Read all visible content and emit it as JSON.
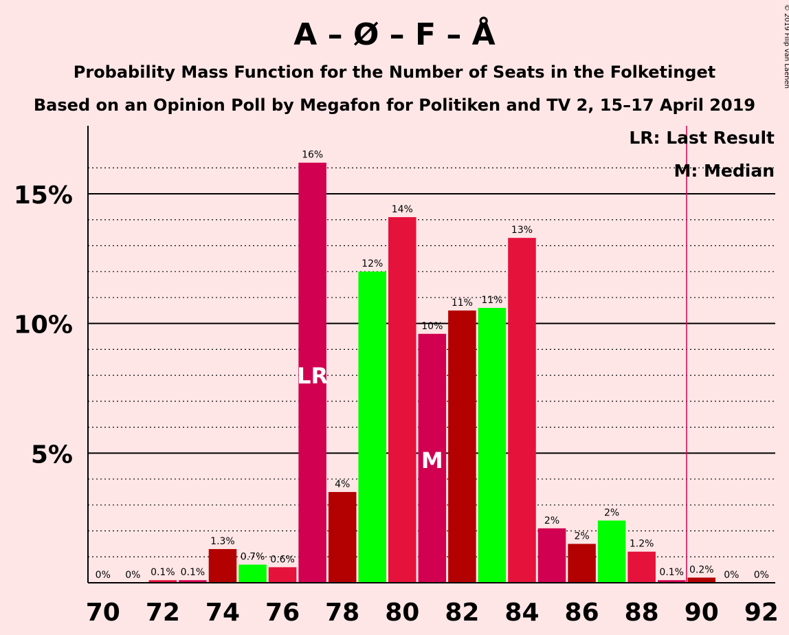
{
  "title": "A – Ø – F – Å",
  "subtitle1": "Probability Mass Function for the Number of Seats in the Folketinget",
  "subtitle2": "Based on an Opinion Poll by Megafon for Politiken and TV 2, 15–17 April 2019",
  "copyright": "© 2019 Filip van Laenen",
  "legend": {
    "lr": "LR: Last Result",
    "m": "M: Median"
  },
  "colors": {
    "background": "#FFE6E6",
    "palette": [
      "#D10050",
      "#B30000",
      "#00FF00",
      "#E5123C"
    ],
    "last_result_line": "#D10050"
  },
  "chart_data": {
    "type": "bar",
    "x": [
      70,
      71,
      72,
      73,
      74,
      75,
      76,
      77,
      78,
      79,
      80,
      81,
      82,
      83,
      84,
      85,
      86,
      87,
      88,
      89,
      90,
      91,
      92
    ],
    "values": [
      0,
      0,
      0.1,
      0.1,
      1.3,
      0.7,
      0.6,
      16.2,
      3.5,
      12.0,
      14.1,
      9.6,
      10.5,
      10.6,
      13.3,
      2.1,
      1.5,
      2.4,
      1.2,
      0.1,
      0.2,
      0,
      0
    ],
    "labels": [
      "0%",
      "0%",
      "0.1%",
      "0.1%",
      "1.3%",
      "0.7%",
      "0.6%",
      "16%",
      "4%",
      "12%",
      "14%",
      "10%",
      "11%",
      "11%",
      "13%",
      "2%",
      "2%",
      "2%",
      "1.2%",
      "0.1%",
      "0.2%",
      "0%",
      "0%"
    ],
    "x_ticks": [
      "70",
      "72",
      "74",
      "76",
      "78",
      "80",
      "82",
      "84",
      "86",
      "88",
      "90",
      "92"
    ],
    "y_ticks": [
      "5%",
      "10%",
      "15%"
    ],
    "y_range": [
      0,
      17.5
    ],
    "last_result": 77,
    "last_result_marker": "LR",
    "median": 81,
    "median_marker": "M",
    "majority_line_x": 89.5,
    "grid": "dotted minor at 1%, solid major at 5%"
  }
}
